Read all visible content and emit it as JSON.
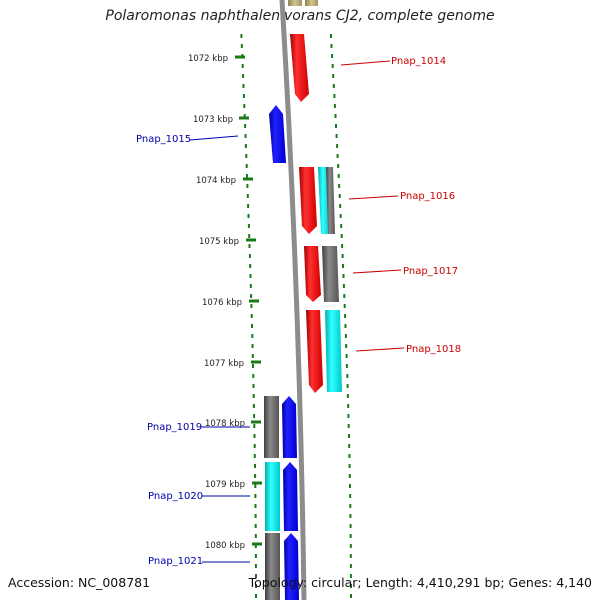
{
  "title": "Polaromonas naphthalenivorans CJ2, complete genome",
  "footer": {
    "accession": "Accession: NC_008781",
    "summary": "Topology: circular; Length: 4,410,291 bp; Genes: 4,140"
  },
  "ticks": [
    "1072 kbp",
    "1073 kbp",
    "1074 kbp",
    "1075 kbp",
    "1076 kbp",
    "1077 kbp",
    "1078 kbp",
    "1079 kbp",
    "1080 kbp"
  ],
  "gene_labels": [
    {
      "text": "Pnap_1014",
      "color": "#cc0000"
    },
    {
      "text": "Pnap_1015",
      "color": "#0000aa"
    },
    {
      "text": "Pnap_1016",
      "color": "#cc0000"
    },
    {
      "text": "Pnap_1017",
      "color": "#cc0000"
    },
    {
      "text": "Pnap_1018",
      "color": "#cc0000"
    },
    {
      "text": "Pnap_1019",
      "color": "#0000aa"
    },
    {
      "text": "Pnap_1020",
      "color": "#0000aa"
    },
    {
      "text": "Pnap_1021",
      "color": "#0000aa"
    }
  ],
  "colors": {
    "forward_gene": "#ff0000",
    "reverse_gene": "#0000ff",
    "cyan_feature": "#00e5e5",
    "gray_feature": "#666666",
    "olive_feature": "#b8ac78",
    "tick_green": "#1a7a1a",
    "backbone": "#8c8c8c"
  }
}
